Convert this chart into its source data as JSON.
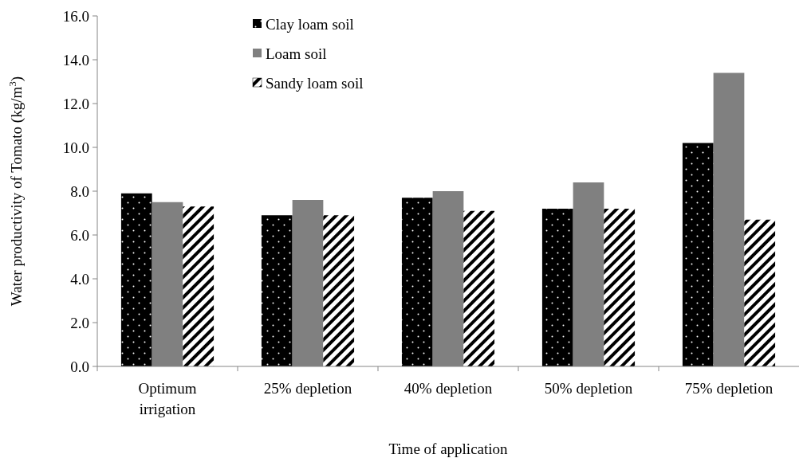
{
  "chart_data": {
    "type": "bar",
    "xlabel": "Time of application",
    "ylabel": "Water productivity of Tomato (kg/m$^{3}$)",
    "categories": [
      "Optimum irrigation",
      "25% depletion",
      "40% depletion",
      "50% depletion",
      "75% depletion"
    ],
    "series": [
      {
        "name": "Clay loam soil",
        "color": "#000000",
        "values": [
          7.9,
          6.9,
          7.7,
          7.2,
          10.2
        ]
      },
      {
        "name": "Loam soil",
        "color": "#808080",
        "values": [
          7.5,
          7.6,
          8.0,
          8.4,
          13.4
        ]
      },
      {
        "name": "Sandy loam soil",
        "color": "#000000",
        "values": [
          7.3,
          6.9,
          7.1,
          7.2,
          6.7
        ]
      }
    ],
    "ylim": [
      0,
      16
    ],
    "yticks": [
      {
        "value": 0,
        "label": "0.0"
      },
      {
        "value": 2,
        "label": "2.0"
      },
      {
        "value": 4,
        "label": "4.0"
      },
      {
        "value": 6,
        "label": "6.0"
      },
      {
        "value": 8,
        "label": "8.0"
      },
      {
        "value": 10,
        "label": "10.0"
      },
      {
        "value": 12,
        "label": "12.0"
      },
      {
        "value": 14,
        "label": "14.0"
      },
      {
        "value": 16,
        "label": "16.0"
      }
    ],
    "grid": false,
    "legend": "top"
  }
}
